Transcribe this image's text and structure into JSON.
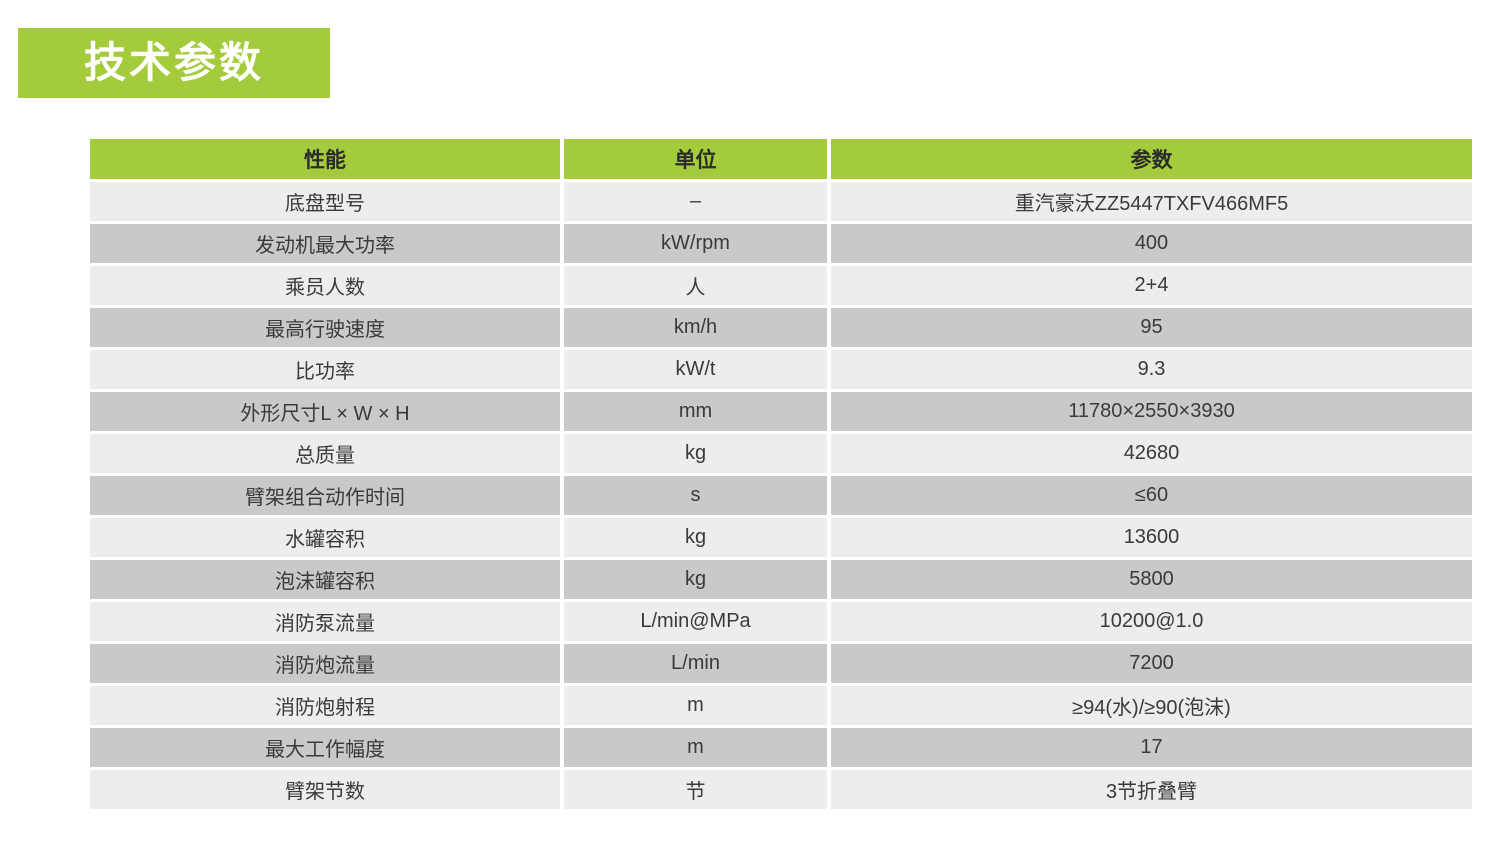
{
  "title": {
    "text": "技术参数"
  },
  "theme": {
    "green": "#A3CB3C",
    "row_light": "#ECEDEF",
    "row_dark": "#C9C9CB",
    "header_text": "#2B2B2B",
    "cell_text": "#3A3A3A",
    "title_text": "#FFFFFF",
    "page_bg": "#FFFFFF"
  },
  "table": {
    "header": {
      "property": "性能",
      "unit": "单位",
      "value": "参数"
    },
    "rows": [
      {
        "property": "底盘型号",
        "unit": "–",
        "value": "重汽豪沃ZZ5447TXFV466MF5"
      },
      {
        "property": "发动机最大功率",
        "unit": "kW/rpm",
        "value": "400"
      },
      {
        "property": "乘员人数",
        "unit": "人",
        "value": "2+4"
      },
      {
        "property": "最高行驶速度",
        "unit": "km/h",
        "value": "95"
      },
      {
        "property": "比功率",
        "unit": "kW/t",
        "value": "9.3"
      },
      {
        "property": "外形尺寸L × W × H",
        "unit": "mm",
        "value": "11780×2550×3930"
      },
      {
        "property": "总质量",
        "unit": "kg",
        "value": "42680"
      },
      {
        "property": "臂架组合动作时间",
        "unit": "s",
        "value": "≤60"
      },
      {
        "property": "水罐容积",
        "unit": "kg",
        "value": "13600"
      },
      {
        "property": "泡沫罐容积",
        "unit": "kg",
        "value": "5800"
      },
      {
        "property": "消防泵流量",
        "unit": "L/min@MPa",
        "value": "10200@1.0"
      },
      {
        "property": "消防炮流量",
        "unit": "L/min",
        "value": "7200"
      },
      {
        "property": "消防炮射程",
        "unit": "m",
        "value": "≥94(水)/≥90(泡沫)"
      },
      {
        "property": "最大工作幅度",
        "unit": "m",
        "value": "17"
      },
      {
        "property": "臂架节数",
        "unit": "节",
        "value": "3节折叠臂"
      }
    ]
  }
}
